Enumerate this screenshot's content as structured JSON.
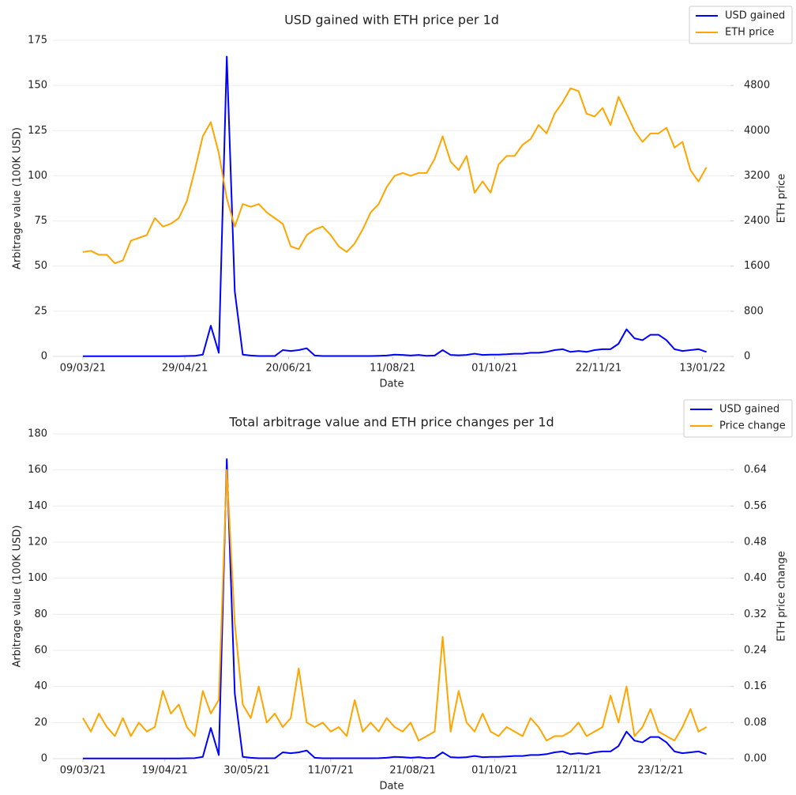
{
  "chart_data": [
    {
      "type": "line",
      "title": "USD gained with ETH price per 1d",
      "xlabel": "Date",
      "ylabel": "Arbitrage value (100K USD)",
      "y2label": "ETH price",
      "x": [
        "2021-03-09",
        "2021-03-13",
        "2021-03-17",
        "2021-03-21",
        "2021-03-25",
        "2021-03-29",
        "2021-04-02",
        "2021-04-06",
        "2021-04-10",
        "2021-04-14",
        "2021-04-18",
        "2021-04-22",
        "2021-04-26",
        "2021-04-30",
        "2021-05-04",
        "2021-05-08",
        "2021-05-12",
        "2021-05-16",
        "2021-05-20",
        "2021-05-24",
        "2021-05-28",
        "2021-06-01",
        "2021-06-05",
        "2021-06-09",
        "2021-06-13",
        "2021-06-17",
        "2021-06-21",
        "2021-06-25",
        "2021-06-29",
        "2021-07-03",
        "2021-07-07",
        "2021-07-11",
        "2021-07-15",
        "2021-07-19",
        "2021-07-23",
        "2021-07-27",
        "2021-07-31",
        "2021-08-04",
        "2021-08-08",
        "2021-08-12",
        "2021-08-16",
        "2021-08-20",
        "2021-08-24",
        "2021-08-28",
        "2021-09-01",
        "2021-09-05",
        "2021-09-09",
        "2021-09-13",
        "2021-09-17",
        "2021-09-21",
        "2021-09-25",
        "2021-09-29",
        "2021-10-03",
        "2021-10-07",
        "2021-10-11",
        "2021-10-15",
        "2021-10-19",
        "2021-10-23",
        "2021-10-27",
        "2021-10-31",
        "2021-11-04",
        "2021-11-08",
        "2021-11-12",
        "2021-11-16",
        "2021-11-20",
        "2021-11-24",
        "2021-11-28",
        "2021-12-02",
        "2021-12-06",
        "2021-12-10",
        "2021-12-14",
        "2021-12-18",
        "2021-12-22",
        "2021-12-26",
        "2021-12-30",
        "2022-01-03",
        "2022-01-07",
        "2022-01-11",
        "2022-01-15"
      ],
      "xlim": [
        "2021-02-22",
        "2022-01-27"
      ],
      "xticks": [
        {
          "value": "2021-03-09",
          "label": "09/03/21"
        },
        {
          "value": "2021-04-29",
          "label": "29/04/21"
        },
        {
          "value": "2021-06-20",
          "label": "20/06/21"
        },
        {
          "value": "2021-08-11",
          "label": "11/08/21"
        },
        {
          "value": "2021-10-01",
          "label": "01/10/21"
        },
        {
          "value": "2021-11-22",
          "label": "22/11/21"
        },
        {
          "value": "2022-01-13",
          "label": "13/01/22"
        }
      ],
      "ylim": [
        0,
        175
      ],
      "yticks": [
        0,
        25,
        50,
        75,
        100,
        125,
        150,
        175
      ],
      "y2lim": [
        0,
        5600
      ],
      "y2ticks": [
        0,
        800,
        1600,
        2400,
        3200,
        4000,
        4800,
        5600
      ],
      "grid": true,
      "legend": "upper right",
      "series": [
        {
          "name": "USD gained",
          "color": "#0000ff",
          "values": [
            0.1,
            0.1,
            0.1,
            0.1,
            0.1,
            0.1,
            0.1,
            0.1,
            0.1,
            0.1,
            0.1,
            0.1,
            0.1,
            0.2,
            0.3,
            1,
            17,
            2,
            166,
            36,
            1,
            0.5,
            0.2,
            0.2,
            0.2,
            3.5,
            3,
            3.5,
            4.5,
            0.5,
            0.2,
            0.2,
            0.2,
            0.2,
            0.2,
            0.2,
            0.2,
            0.3,
            0.5,
            1,
            0.8,
            0.5,
            0.8,
            0.3,
            0.5,
            3.5,
            0.8,
            0.6,
            0.8,
            1.5,
            0.8,
            1,
            1,
            1.2,
            1.5,
            1.5,
            2,
            2,
            2.5,
            3.5,
            4,
            2.5,
            3,
            2.5,
            3.5,
            4,
            4,
            7,
            15,
            10,
            9,
            12,
            12,
            9,
            4,
            3,
            3.5,
            4,
            2.5
          ]
        },
        {
          "name": "ETH price",
          "color": "#ffa500",
          "axis": "y2",
          "values": [
            1850,
            1870,
            1800,
            1800,
            1650,
            1700,
            2050,
            2100,
            2150,
            2450,
            2300,
            2350,
            2450,
            2750,
            3300,
            3900,
            4150,
            3600,
            2800,
            2300,
            2700,
            2650,
            2700,
            2550,
            2450,
            2350,
            1950,
            1900,
            2150,
            2250,
            2300,
            2150,
            1950,
            1850,
            2000,
            2250,
            2550,
            2700,
            3000,
            3200,
            3250,
            3200,
            3250,
            3250,
            3500,
            3900,
            3450,
            3300,
            3550,
            2900,
            3100,
            2900,
            3400,
            3550,
            3550,
            3750,
            3850,
            4100,
            3950,
            4300,
            4500,
            4750,
            4700,
            4300,
            4250,
            4400,
            4100,
            4600,
            4300,
            4000,
            3800,
            3950,
            3950,
            4050,
            3700,
            3800,
            3300,
            3100,
            3350
          ]
        }
      ]
    },
    {
      "type": "line",
      "title": "Total arbitrage value and ETH price changes per 1d",
      "xlabel": "Date",
      "ylabel": "Arbitrage value (100K USD)",
      "y2label": "ETH price change",
      "x": [
        "2021-03-09",
        "2021-03-13",
        "2021-03-17",
        "2021-03-21",
        "2021-03-25",
        "2021-03-29",
        "2021-04-02",
        "2021-04-06",
        "2021-04-10",
        "2021-04-14",
        "2021-04-18",
        "2021-04-22",
        "2021-04-26",
        "2021-04-30",
        "2021-05-04",
        "2021-05-08",
        "2021-05-12",
        "2021-05-16",
        "2021-05-20",
        "2021-05-24",
        "2021-05-28",
        "2021-06-01",
        "2021-06-05",
        "2021-06-09",
        "2021-06-13",
        "2021-06-17",
        "2021-06-21",
        "2021-06-25",
        "2021-06-29",
        "2021-07-03",
        "2021-07-07",
        "2021-07-11",
        "2021-07-15",
        "2021-07-19",
        "2021-07-23",
        "2021-07-27",
        "2021-07-31",
        "2021-08-04",
        "2021-08-08",
        "2021-08-12",
        "2021-08-16",
        "2021-08-20",
        "2021-08-24",
        "2021-08-28",
        "2021-09-01",
        "2021-09-05",
        "2021-09-09",
        "2021-09-13",
        "2021-09-17",
        "2021-09-21",
        "2021-09-25",
        "2021-09-29",
        "2021-10-03",
        "2021-10-07",
        "2021-10-11",
        "2021-10-15",
        "2021-10-19",
        "2021-10-23",
        "2021-10-27",
        "2021-10-31",
        "2021-11-04",
        "2021-11-08",
        "2021-11-12",
        "2021-11-16",
        "2021-11-20",
        "2021-11-24",
        "2021-11-28",
        "2021-12-02",
        "2021-12-06",
        "2021-12-10",
        "2021-12-14",
        "2021-12-18",
        "2021-12-22",
        "2021-12-26",
        "2021-12-30",
        "2022-01-03",
        "2022-01-07",
        "2022-01-11",
        "2022-01-15"
      ],
      "xlim": [
        "2021-02-22",
        "2022-01-27"
      ],
      "xticks": [
        {
          "value": "2021-03-09",
          "label": "09/03/21"
        },
        {
          "value": "2021-04-19",
          "label": "19/04/21"
        },
        {
          "value": "2021-05-30",
          "label": "30/05/21"
        },
        {
          "value": "2021-07-11",
          "label": "11/07/21"
        },
        {
          "value": "2021-08-21",
          "label": "21/08/21"
        },
        {
          "value": "2021-10-01",
          "label": "01/10/21"
        },
        {
          "value": "2021-11-12",
          "label": "12/11/21"
        },
        {
          "value": "2021-12-23",
          "label": "23/12/21"
        }
      ],
      "ylim": [
        0,
        180
      ],
      "yticks": [
        0,
        20,
        40,
        60,
        80,
        100,
        120,
        140,
        160,
        180
      ],
      "y2lim": [
        0,
        0.72
      ],
      "y2ticks": [
        {
          "value": 0,
          "label": "0.00"
        },
        {
          "value": 0.08,
          "label": "0.08"
        },
        {
          "value": 0.16,
          "label": "0.16"
        },
        {
          "value": 0.24,
          "label": "0.24"
        },
        {
          "value": 0.32,
          "label": "0.32"
        },
        {
          "value": 0.4,
          "label": "0.40"
        },
        {
          "value": 0.48,
          "label": "0.48"
        },
        {
          "value": 0.56,
          "label": "0.56"
        },
        {
          "value": 0.64,
          "label": "0.64"
        },
        {
          "value": 0.72,
          "label": "0.72"
        }
      ],
      "grid": true,
      "legend": "upper right",
      "series": [
        {
          "name": "USD gained",
          "color": "#0000ff",
          "values": [
            0.1,
            0.1,
            0.1,
            0.1,
            0.1,
            0.1,
            0.1,
            0.1,
            0.1,
            0.1,
            0.1,
            0.1,
            0.1,
            0.2,
            0.3,
            1,
            17,
            2,
            166,
            36,
            1,
            0.5,
            0.2,
            0.2,
            0.2,
            3.5,
            3,
            3.5,
            4.5,
            0.5,
            0.2,
            0.2,
            0.2,
            0.2,
            0.2,
            0.2,
            0.2,
            0.3,
            0.5,
            1,
            0.8,
            0.5,
            0.8,
            0.3,
            0.5,
            3.5,
            0.8,
            0.6,
            0.8,
            1.5,
            0.8,
            1,
            1,
            1.2,
            1.5,
            1.5,
            2,
            2,
            2.5,
            3.5,
            4,
            2.5,
            3,
            2.5,
            3.5,
            4,
            4,
            7,
            15,
            10,
            9,
            12,
            12,
            9,
            4,
            3,
            3.5,
            4,
            2.5
          ]
        },
        {
          "name": "Price change",
          "color": "#ffa500",
          "axis": "y2",
          "values": [
            0.09,
            0.06,
            0.1,
            0.07,
            0.05,
            0.09,
            0.05,
            0.08,
            0.06,
            0.07,
            0.15,
            0.1,
            0.12,
            0.07,
            0.05,
            0.15,
            0.1,
            0.13,
            0.64,
            0.3,
            0.12,
            0.09,
            0.16,
            0.08,
            0.1,
            0.07,
            0.09,
            0.2,
            0.08,
            0.07,
            0.08,
            0.06,
            0.07,
            0.05,
            0.13,
            0.06,
            0.08,
            0.06,
            0.09,
            0.07,
            0.06,
            0.08,
            0.04,
            0.05,
            0.06,
            0.27,
            0.06,
            0.15,
            0.08,
            0.06,
            0.1,
            0.06,
            0.05,
            0.07,
            0.06,
            0.05,
            0.09,
            0.07,
            0.04,
            0.05,
            0.05,
            0.06,
            0.08,
            0.05,
            0.06,
            0.07,
            0.14,
            0.08,
            0.16,
            0.05,
            0.07,
            0.11,
            0.06,
            0.05,
            0.04,
            0.07,
            0.11,
            0.06,
            0.07
          ]
        }
      ]
    }
  ]
}
